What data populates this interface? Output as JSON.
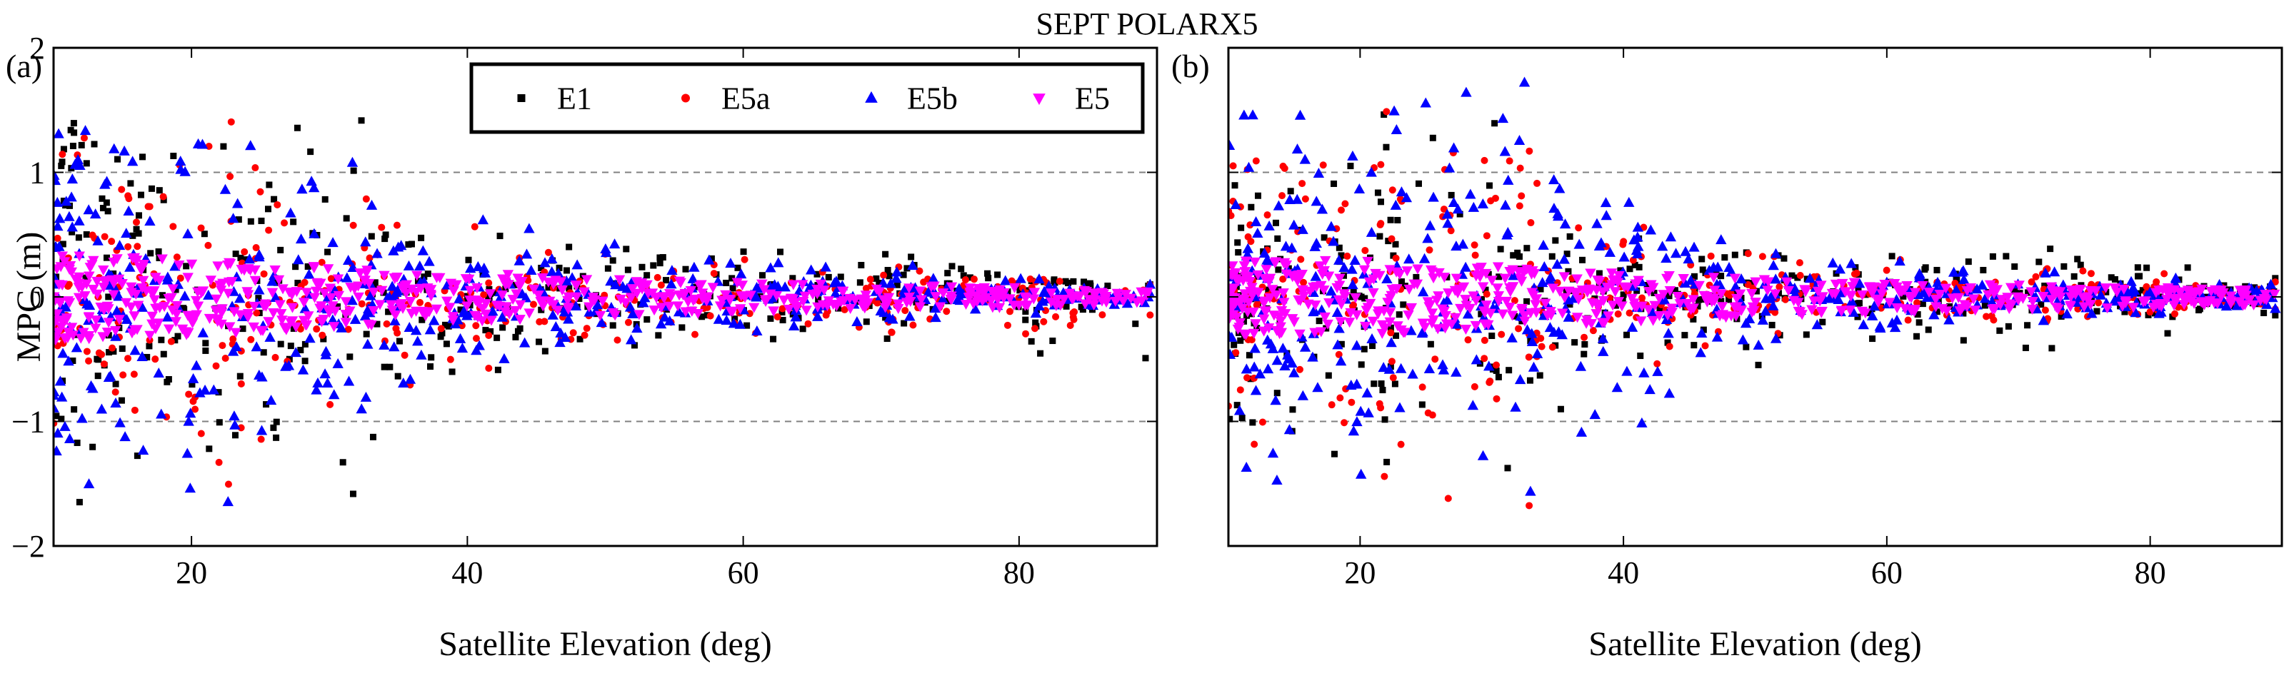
{
  "figure_title": "SEPT POLARX5",
  "chart_data": [
    {
      "panel_label": "(a)",
      "type": "scatter",
      "xlabel": "Satellite Elevation (deg)",
      "ylabel": "MPC (m)",
      "xlim": [
        10,
        90
      ],
      "ylim": [
        -2,
        2
      ],
      "xticks": [
        20,
        40,
        60,
        80
      ],
      "yticks": [
        -2,
        -1,
        0,
        1,
        2
      ],
      "ytick_labels": [
        "−2",
        "−1",
        "0",
        "1",
        "2"
      ],
      "reference_lines": [
        1,
        -1
      ],
      "legend": {
        "placement": "top-right",
        "entries": [
          "E1",
          "E5a",
          "E5b",
          "E5"
        ]
      },
      "series": [
        {
          "name": "E1",
          "color": "#000000",
          "marker": "square",
          "envelope": {
            "x": [
              10,
              20,
              30,
              40,
              50,
              60,
              70,
              80,
              89
            ],
            "y_max": [
              1.45,
              1.3,
              1.5,
              0.5,
              0.4,
              0.4,
              0.35,
              0.15,
              0.1
            ],
            "y_min": [
              -1.75,
              -1.3,
              -1.6,
              -0.6,
              -0.4,
              -0.35,
              -0.35,
              -0.5,
              -0.5
            ]
          }
        },
        {
          "name": "E5a",
          "color": "#ff0000",
          "marker": "circle",
          "envelope": {
            "x": [
              10,
              20,
              30,
              40,
              50,
              60,
              70,
              80,
              89
            ],
            "y_max": [
              1.25,
              1.45,
              0.85,
              0.6,
              0.35,
              0.3,
              0.25,
              0.15,
              0.1
            ],
            "y_min": [
              -1.1,
              -1.6,
              -0.9,
              -0.6,
              -0.35,
              -0.3,
              -0.3,
              -0.3,
              -0.15
            ]
          }
        },
        {
          "name": "E5b",
          "color": "#0000ff",
          "marker": "triangle-up",
          "envelope": {
            "x": [
              10,
              20,
              30,
              40,
              50,
              60,
              70,
              80,
              89
            ],
            "y_max": [
              1.45,
              1.35,
              1.15,
              0.65,
              0.45,
              0.3,
              0.25,
              0.15,
              0.1
            ],
            "y_min": [
              -1.6,
              -1.65,
              -1.0,
              -0.55,
              -0.35,
              -0.3,
              -0.2,
              -0.15,
              -0.05
            ]
          }
        },
        {
          "name": "E5",
          "color": "#ff00ff",
          "marker": "triangle-down",
          "envelope": {
            "x": [
              10,
              20,
              30,
              40,
              50,
              60,
              70,
              80,
              89
            ],
            "y_max": [
              0.35,
              0.3,
              0.25,
              0.2,
              0.15,
              0.12,
              0.1,
              0.08,
              0.05
            ],
            "y_min": [
              -0.35,
              -0.3,
              -0.25,
              -0.2,
              -0.15,
              -0.12,
              -0.1,
              -0.08,
              -0.05
            ]
          }
        }
      ]
    },
    {
      "panel_label": "(b)",
      "type": "scatter",
      "xlabel": "Satellite Elevation (deg)",
      "ylabel": "",
      "xlim": [
        10,
        90
      ],
      "ylim": [
        -2,
        2
      ],
      "xticks": [
        20,
        40,
        60,
        80
      ],
      "yticks": [
        -2,
        -1,
        0,
        1,
        2
      ],
      "reference_lines": [
        1,
        -1
      ],
      "series": [
        {
          "name": "E1",
          "color": "#000000",
          "marker": "square",
          "envelope": {
            "x": [
              10,
              20,
              30,
              40,
              50,
              60,
              70,
              80,
              89
            ],
            "y_max": [
              0.9,
              1.5,
              1.5,
              0.5,
              0.35,
              0.35,
              0.4,
              0.25,
              0.15
            ],
            "y_min": [
              -1.1,
              -1.4,
              -1.5,
              -0.5,
              -0.6,
              -0.35,
              -0.45,
              -0.3,
              -0.15
            ]
          }
        },
        {
          "name": "E5a",
          "color": "#ff0000",
          "marker": "circle",
          "envelope": {
            "x": [
              10,
              20,
              30,
              40,
              50,
              60,
              70,
              80,
              89
            ],
            "y_max": [
              1.1,
              1.5,
              1.2,
              0.6,
              0.35,
              0.3,
              0.25,
              0.2,
              0.12
            ],
            "y_min": [
              -1.2,
              -1.55,
              -1.75,
              -0.55,
              -0.3,
              -0.2,
              -0.2,
              -0.15,
              -0.1
            ]
          }
        },
        {
          "name": "E5b",
          "color": "#0000ff",
          "marker": "triangle-up",
          "envelope": {
            "x": [
              10,
              20,
              30,
              40,
              50,
              60,
              70,
              80,
              89
            ],
            "y_max": [
              1.6,
              1.5,
              1.85,
              0.8,
              0.35,
              0.3,
              0.2,
              0.15,
              0.1
            ],
            "y_min": [
              -1.5,
              -1.45,
              -1.6,
              -1.05,
              -0.4,
              -0.25,
              -0.2,
              -0.15,
              -0.1
            ]
          }
        },
        {
          "name": "E5",
          "color": "#ff00ff",
          "marker": "triangle-down",
          "envelope": {
            "x": [
              10,
              20,
              30,
              40,
              50,
              60,
              70,
              80,
              89
            ],
            "y_max": [
              0.3,
              0.3,
              0.25,
              0.2,
              0.15,
              0.12,
              0.1,
              0.08,
              0.06
            ],
            "y_min": [
              -0.3,
              -0.3,
              -0.25,
              -0.2,
              -0.15,
              -0.12,
              -0.1,
              -0.08,
              -0.06
            ]
          }
        }
      ]
    }
  ]
}
